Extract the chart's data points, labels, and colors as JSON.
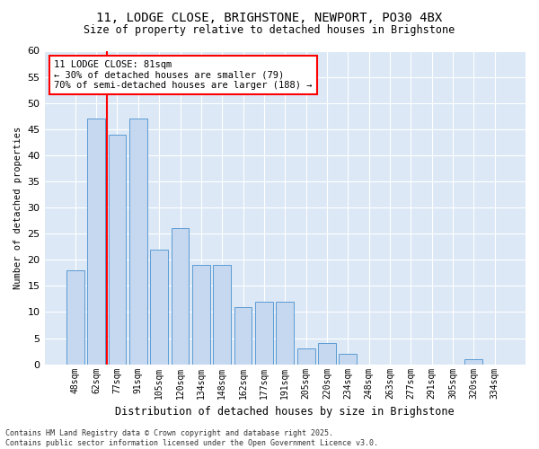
{
  "title1": "11, LODGE CLOSE, BRIGHSTONE, NEWPORT, PO30 4BX",
  "title2": "Size of property relative to detached houses in Brighstone",
  "xlabel": "Distribution of detached houses by size in Brighstone",
  "ylabel": "Number of detached properties",
  "categories": [
    "48sqm",
    "62sqm",
    "77sqm",
    "91sqm",
    "105sqm",
    "120sqm",
    "134sqm",
    "148sqm",
    "162sqm",
    "177sqm",
    "191sqm",
    "205sqm",
    "220sqm",
    "234sqm",
    "248sqm",
    "263sqm",
    "277sqm",
    "291sqm",
    "305sqm",
    "320sqm",
    "334sqm"
  ],
  "values": [
    18,
    47,
    44,
    47,
    22,
    26,
    19,
    19,
    11,
    12,
    12,
    3,
    4,
    2,
    0,
    0,
    0,
    0,
    0,
    1,
    0
  ],
  "bar_color": "#c5d8f0",
  "bar_edge_color": "#5b9bd5",
  "red_line_index": 2,
  "annotation_title": "11 LODGE CLOSE: 81sqm",
  "annotation_line1": "← 30% of detached houses are smaller (79)",
  "annotation_line2": "70% of semi-detached houses are larger (188) →",
  "ylim": [
    0,
    60
  ],
  "yticks": [
    0,
    5,
    10,
    15,
    20,
    25,
    30,
    35,
    40,
    45,
    50,
    55,
    60
  ],
  "bg_color": "#dce8f5",
  "footer1": "Contains HM Land Registry data © Crown copyright and database right 2025.",
  "footer2": "Contains public sector information licensed under the Open Government Licence v3.0."
}
